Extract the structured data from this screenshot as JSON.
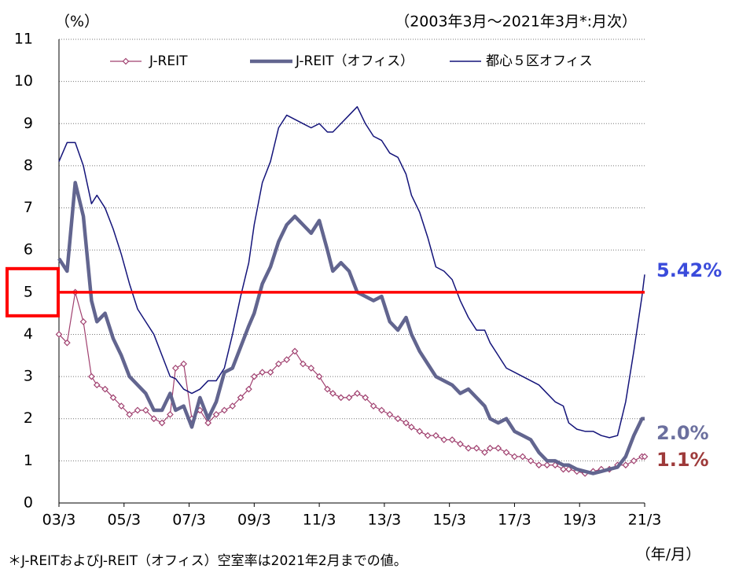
{
  "chart_data": {
    "type": "line",
    "subtitle": "（2003年3月～2021年3月*:月次）",
    "y_label": "（%）",
    "x_label": "（年/月）",
    "footnote": "＊J-REITおよびJ-REIT（オフィス）空室率は2021年2月までの値。",
    "x": [
      0,
      3,
      6,
      9,
      12,
      14,
      17,
      20,
      23,
      26,
      29,
      32,
      35,
      38,
      41,
      43,
      46,
      49,
      52,
      55,
      58,
      61,
      64,
      67,
      70,
      72,
      75,
      78,
      81,
      84,
      87,
      90,
      93,
      96,
      99,
      101,
      104,
      107,
      110,
      113,
      116,
      119,
      122,
      125,
      128,
      130,
      133,
      136,
      139,
      142,
      145,
      148,
      151,
      154,
      157,
      159,
      162,
      165,
      168,
      171,
      174,
      177,
      180,
      183,
      186,
      188,
      191,
      194,
      197,
      200,
      203,
      206,
      209,
      212,
      215,
      216
    ],
    "xlim": [
      0,
      216
    ],
    "xticks": [
      {
        "value": 0,
        "label": "03/3"
      },
      {
        "value": 24,
        "label": "05/3"
      },
      {
        "value": 48,
        "label": "07/3"
      },
      {
        "value": 72,
        "label": "09/3"
      },
      {
        "value": 96,
        "label": "11/3"
      },
      {
        "value": 120,
        "label": "13/3"
      },
      {
        "value": 144,
        "label": "15/3"
      },
      {
        "value": 168,
        "label": "17/3"
      },
      {
        "value": 192,
        "label": "19/3"
      },
      {
        "value": 216,
        "label": "21/3"
      }
    ],
    "ylim": [
      0,
      11
    ],
    "yticks": [
      0,
      1,
      2,
      3,
      4,
      5,
      6,
      7,
      8,
      9,
      10,
      11
    ],
    "grid": true,
    "series": [
      {
        "name": "J-REIT",
        "color": "#a0406f",
        "marker": "diamond",
        "width": 1.2,
        "values": [
          4.0,
          3.8,
          5.0,
          4.3,
          3.0,
          2.8,
          2.7,
          2.5,
          2.3,
          2.1,
          2.2,
          2.2,
          2.0,
          1.9,
          2.1,
          3.2,
          3.3,
          2.0,
          2.2,
          1.9,
          2.1,
          2.2,
          2.3,
          2.5,
          2.7,
          3.0,
          3.1,
          3.1,
          3.3,
          3.4,
          3.6,
          3.3,
          3.2,
          3.0,
          2.7,
          2.6,
          2.5,
          2.5,
          2.6,
          2.5,
          2.3,
          2.2,
          2.1,
          2.0,
          1.9,
          1.8,
          1.7,
          1.6,
          1.6,
          1.5,
          1.5,
          1.4,
          1.3,
          1.3,
          1.2,
          1.3,
          1.3,
          1.2,
          1.1,
          1.1,
          1.0,
          0.9,
          0.9,
          0.9,
          0.8,
          0.8,
          0.75,
          0.7,
          0.75,
          0.8,
          0.8,
          0.9,
          0.9,
          1.0,
          1.1,
          1.1
        ]
      },
      {
        "name": "J-REIT（オフィス）",
        "color": "#62658f",
        "width": 4.5,
        "values": [
          5.8,
          5.5,
          7.6,
          6.8,
          4.8,
          4.3,
          4.5,
          3.9,
          3.5,
          3.0,
          2.8,
          2.6,
          2.2,
          2.2,
          2.6,
          2.2,
          2.3,
          1.8,
          2.5,
          2.0,
          2.4,
          3.1,
          3.2,
          3.7,
          4.2,
          4.5,
          5.2,
          5.6,
          6.2,
          6.6,
          6.8,
          6.6,
          6.4,
          6.7,
          6.0,
          5.5,
          5.7,
          5.5,
          5.0,
          4.9,
          4.8,
          4.9,
          4.3,
          4.1,
          4.4,
          4.0,
          3.6,
          3.3,
          3.0,
          2.9,
          2.8,
          2.6,
          2.7,
          2.5,
          2.3,
          2.0,
          1.9,
          2.0,
          1.7,
          1.6,
          1.5,
          1.2,
          1.0,
          1.0,
          0.9,
          0.9,
          0.8,
          0.75,
          0.7,
          0.75,
          0.8,
          0.85,
          1.1,
          1.6,
          2.0,
          2.0
        ]
      },
      {
        "name": "都心５区オフィス",
        "color": "#14147a",
        "width": 1.5,
        "values": [
          8.1,
          8.55,
          8.55,
          8.0,
          7.1,
          7.3,
          7.0,
          6.5,
          5.9,
          5.2,
          4.6,
          4.3,
          4.0,
          3.5,
          3.0,
          2.95,
          2.7,
          2.6,
          2.7,
          2.9,
          2.9,
          3.2,
          4.0,
          4.9,
          5.7,
          6.6,
          7.6,
          8.1,
          8.9,
          9.2,
          9.1,
          9.0,
          8.9,
          9.0,
          8.8,
          8.8,
          9.0,
          9.2,
          9.4,
          9.0,
          8.7,
          8.6,
          8.3,
          8.2,
          7.8,
          7.3,
          6.9,
          6.3,
          5.6,
          5.5,
          5.3,
          4.8,
          4.4,
          4.1,
          4.1,
          3.8,
          3.5,
          3.2,
          3.1,
          3.0,
          2.9,
          2.8,
          2.6,
          2.4,
          2.3,
          1.9,
          1.75,
          1.7,
          1.7,
          1.6,
          1.55,
          1.6,
          2.4,
          3.6,
          4.9,
          5.42
        ]
      }
    ],
    "highlight": {
      "value": 5,
      "color": "#ff0000"
    },
    "annotations": [
      {
        "text": "5.42%",
        "color": "#3a4bdb"
      },
      {
        "text": "2.0%",
        "color": "#6b6f9e"
      },
      {
        "text": "1.1%",
        "color": "#9e3a3a"
      }
    ]
  }
}
